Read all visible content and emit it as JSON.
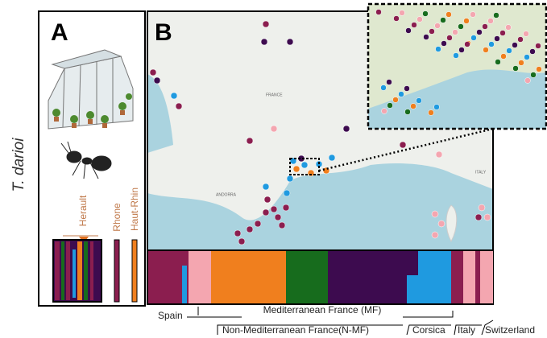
{
  "panel_a": {
    "label": "A",
    "species": "T. darioi",
    "populations": [
      "Herault",
      "Rhone",
      "Haut-Rhin"
    ]
  },
  "panel_b": {
    "label": "B",
    "map_labels": [
      "FRANCE",
      "ANDORRA",
      "ITALY"
    ],
    "regions_top": [
      "Spain",
      "Mediterranean France (MF)"
    ],
    "regions_bottom": [
      "Non-Mediterranean France(N-MF)",
      "Corsica",
      "Italy",
      "Switzerland"
    ]
  }
}
